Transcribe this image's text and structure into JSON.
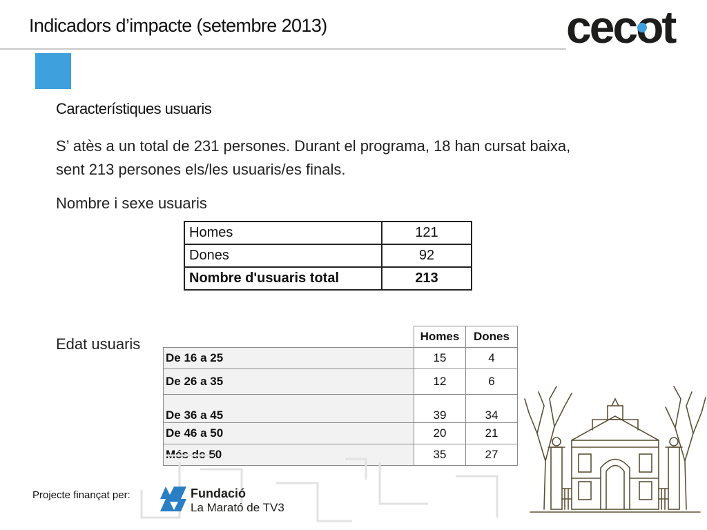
{
  "header": {
    "title": "Indicadors d’impacte (setembre 2013)",
    "logo_text": "cecot"
  },
  "content": {
    "heading": "Característiques usuaris",
    "paragraph_line1": "S’ atès a un total de 231 persones. Durant el programa, 18 han cursat baixa,",
    "paragraph_line2": "sent 213 persones els/les usuaris/es finals.",
    "section_gender": "Nombre i sexe usuaris",
    "section_age": "Edat usuaris"
  },
  "gender_table": {
    "rows": [
      {
        "label": "Homes",
        "value": "121"
      },
      {
        "label": "Dones",
        "value": "92"
      },
      {
        "label": "Nombre d'usuaris total",
        "value": "213"
      }
    ]
  },
  "age_table": {
    "headers": [
      "Homes",
      "Dones"
    ],
    "rows": [
      {
        "label": "De 16  a 25",
        "homes": "15",
        "dones": "4"
      },
      {
        "label": "De 26 a 35",
        "homes": "12",
        "dones": "6"
      },
      {
        "label": "De 36 a 45",
        "homes": "39",
        "dones": "34"
      },
      {
        "label": "De 46 a 50",
        "homes": "20",
        "dones": "21"
      },
      {
        "label": "Més de 50",
        "homes": "35",
        "dones": "27"
      }
    ]
  },
  "footer": {
    "label": "Projecte finançat per:",
    "fundacio_line1": "Fundació",
    "fundacio_line2": "La Marató de TV3"
  },
  "colors": {
    "accent_blue": "#3ea0dc",
    "logo_dark": "#1d1d1b"
  }
}
